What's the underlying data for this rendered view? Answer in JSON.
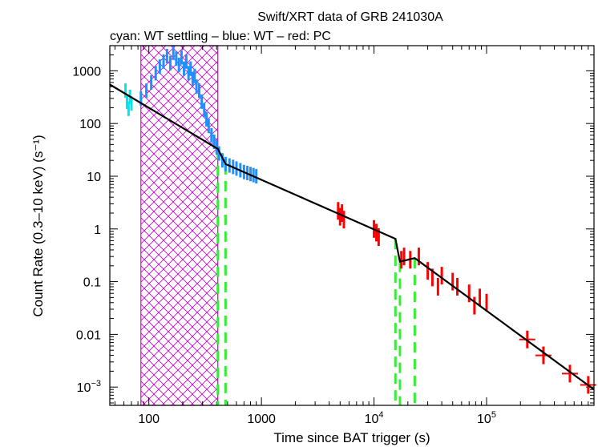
{
  "chart_data": {
    "type": "scatter",
    "title": "Swift/XRT data of GRB 241030A",
    "subtitle": "cyan: WT settling – blue: WT – red: PC",
    "xlabel": "Time since BAT trigger (s)",
    "ylabel": "Count Rate (0.3–10 keV) (s⁻¹)",
    "xscale": "log",
    "yscale": "log",
    "xlim": [
      45,
      900000
    ],
    "ylim": [
      0.00045,
      3000
    ],
    "x_ticks": [
      {
        "value": 100,
        "label": "100"
      },
      {
        "value": 1000,
        "label": "1000"
      },
      {
        "value": 10000,
        "label": "10",
        "sup": "4"
      },
      {
        "value": 100000,
        "label": "10",
        "sup": "5"
      }
    ],
    "y_ticks": [
      {
        "value": 1000,
        "label": "1000"
      },
      {
        "value": 100,
        "label": "100"
      },
      {
        "value": 10,
        "label": "10"
      },
      {
        "value": 1,
        "label": "1"
      },
      {
        "value": 0.1,
        "label": "0.1"
      },
      {
        "value": 0.01,
        "label": "0.01"
      },
      {
        "value": 0.001,
        "label": "10",
        "sup": "−3"
      }
    ],
    "excluded_interval": {
      "x": [
        85,
        410
      ],
      "color": "#cc00cc"
    },
    "break_times": [
      410,
      480,
      15500,
      17000,
      23000
    ],
    "model_line": {
      "color": "#000000",
      "points": [
        [
          45,
          550
        ],
        [
          410,
          33
        ],
        [
          480,
          17
        ],
        [
          15500,
          0.65
        ],
        [
          17000,
          0.24
        ],
        [
          23000,
          0.28
        ],
        [
          900000,
          0.0009
        ]
      ]
    },
    "series": [
      {
        "name": "WT settling",
        "color": "#00e5ee",
        "points": [
          [
            62,
            420
          ],
          [
            64,
            260
          ],
          [
            66,
            190
          ],
          [
            68,
            320
          ],
          [
            70,
            240
          ]
        ]
      },
      {
        "name": "WT",
        "color": "#1e90ff",
        "points": [
          [
            85,
            300
          ],
          [
            95,
            420
          ],
          [
            105,
            600
          ],
          [
            115,
            900
          ],
          [
            125,
            1200
          ],
          [
            135,
            1500
          ],
          [
            145,
            1900
          ],
          [
            155,
            1400
          ],
          [
            165,
            2200
          ],
          [
            175,
            1700
          ],
          [
            185,
            1300
          ],
          [
            195,
            1800
          ],
          [
            205,
            1100
          ],
          [
            215,
            1500
          ],
          [
            225,
            900
          ],
          [
            235,
            1100
          ],
          [
            245,
            700
          ],
          [
            255,
            800
          ],
          [
            265,
            500
          ],
          [
            280,
            420
          ],
          [
            295,
            260
          ],
          [
            310,
            180
          ],
          [
            325,
            120
          ],
          [
            340,
            90
          ],
          [
            360,
            60
          ],
          [
            380,
            45
          ],
          [
            400,
            35
          ],
          [
            420,
            27
          ],
          [
            450,
            20
          ],
          [
            480,
            17
          ],
          [
            520,
            16
          ],
          [
            560,
            15
          ],
          [
            600,
            14
          ],
          [
            650,
            13
          ],
          [
            700,
            12
          ],
          [
            750,
            11.5
          ],
          [
            800,
            11
          ],
          [
            850,
            10.5
          ],
          [
            900,
            10
          ]
        ]
      },
      {
        "name": "PC",
        "color": "#ff0000",
        "points": [
          [
            4800,
            2.2
          ],
          [
            5000,
            1.7
          ],
          [
            5200,
            2.0
          ],
          [
            5400,
            1.5
          ],
          [
            10000,
            1.0
          ],
          [
            10500,
            0.85
          ],
          [
            11000,
            0.7
          ],
          [
            17500,
            0.26
          ],
          [
            18500,
            0.3
          ],
          [
            21000,
            0.26
          ],
          [
            25000,
            0.3
          ],
          [
            30000,
            0.16
          ],
          [
            33000,
            0.12
          ],
          [
            37000,
            0.08
          ],
          [
            40000,
            0.13
          ],
          [
            50000,
            0.1
          ],
          [
            55000,
            0.08
          ],
          [
            70000,
            0.06
          ],
          [
            78000,
            0.035
          ],
          [
            87000,
            0.05
          ],
          [
            100000,
            0.04
          ],
          [
            230000,
            0.008
          ],
          [
            320000,
            0.004
          ],
          [
            550000,
            0.0018
          ],
          [
            800000,
            0.0011
          ]
        ]
      }
    ]
  }
}
